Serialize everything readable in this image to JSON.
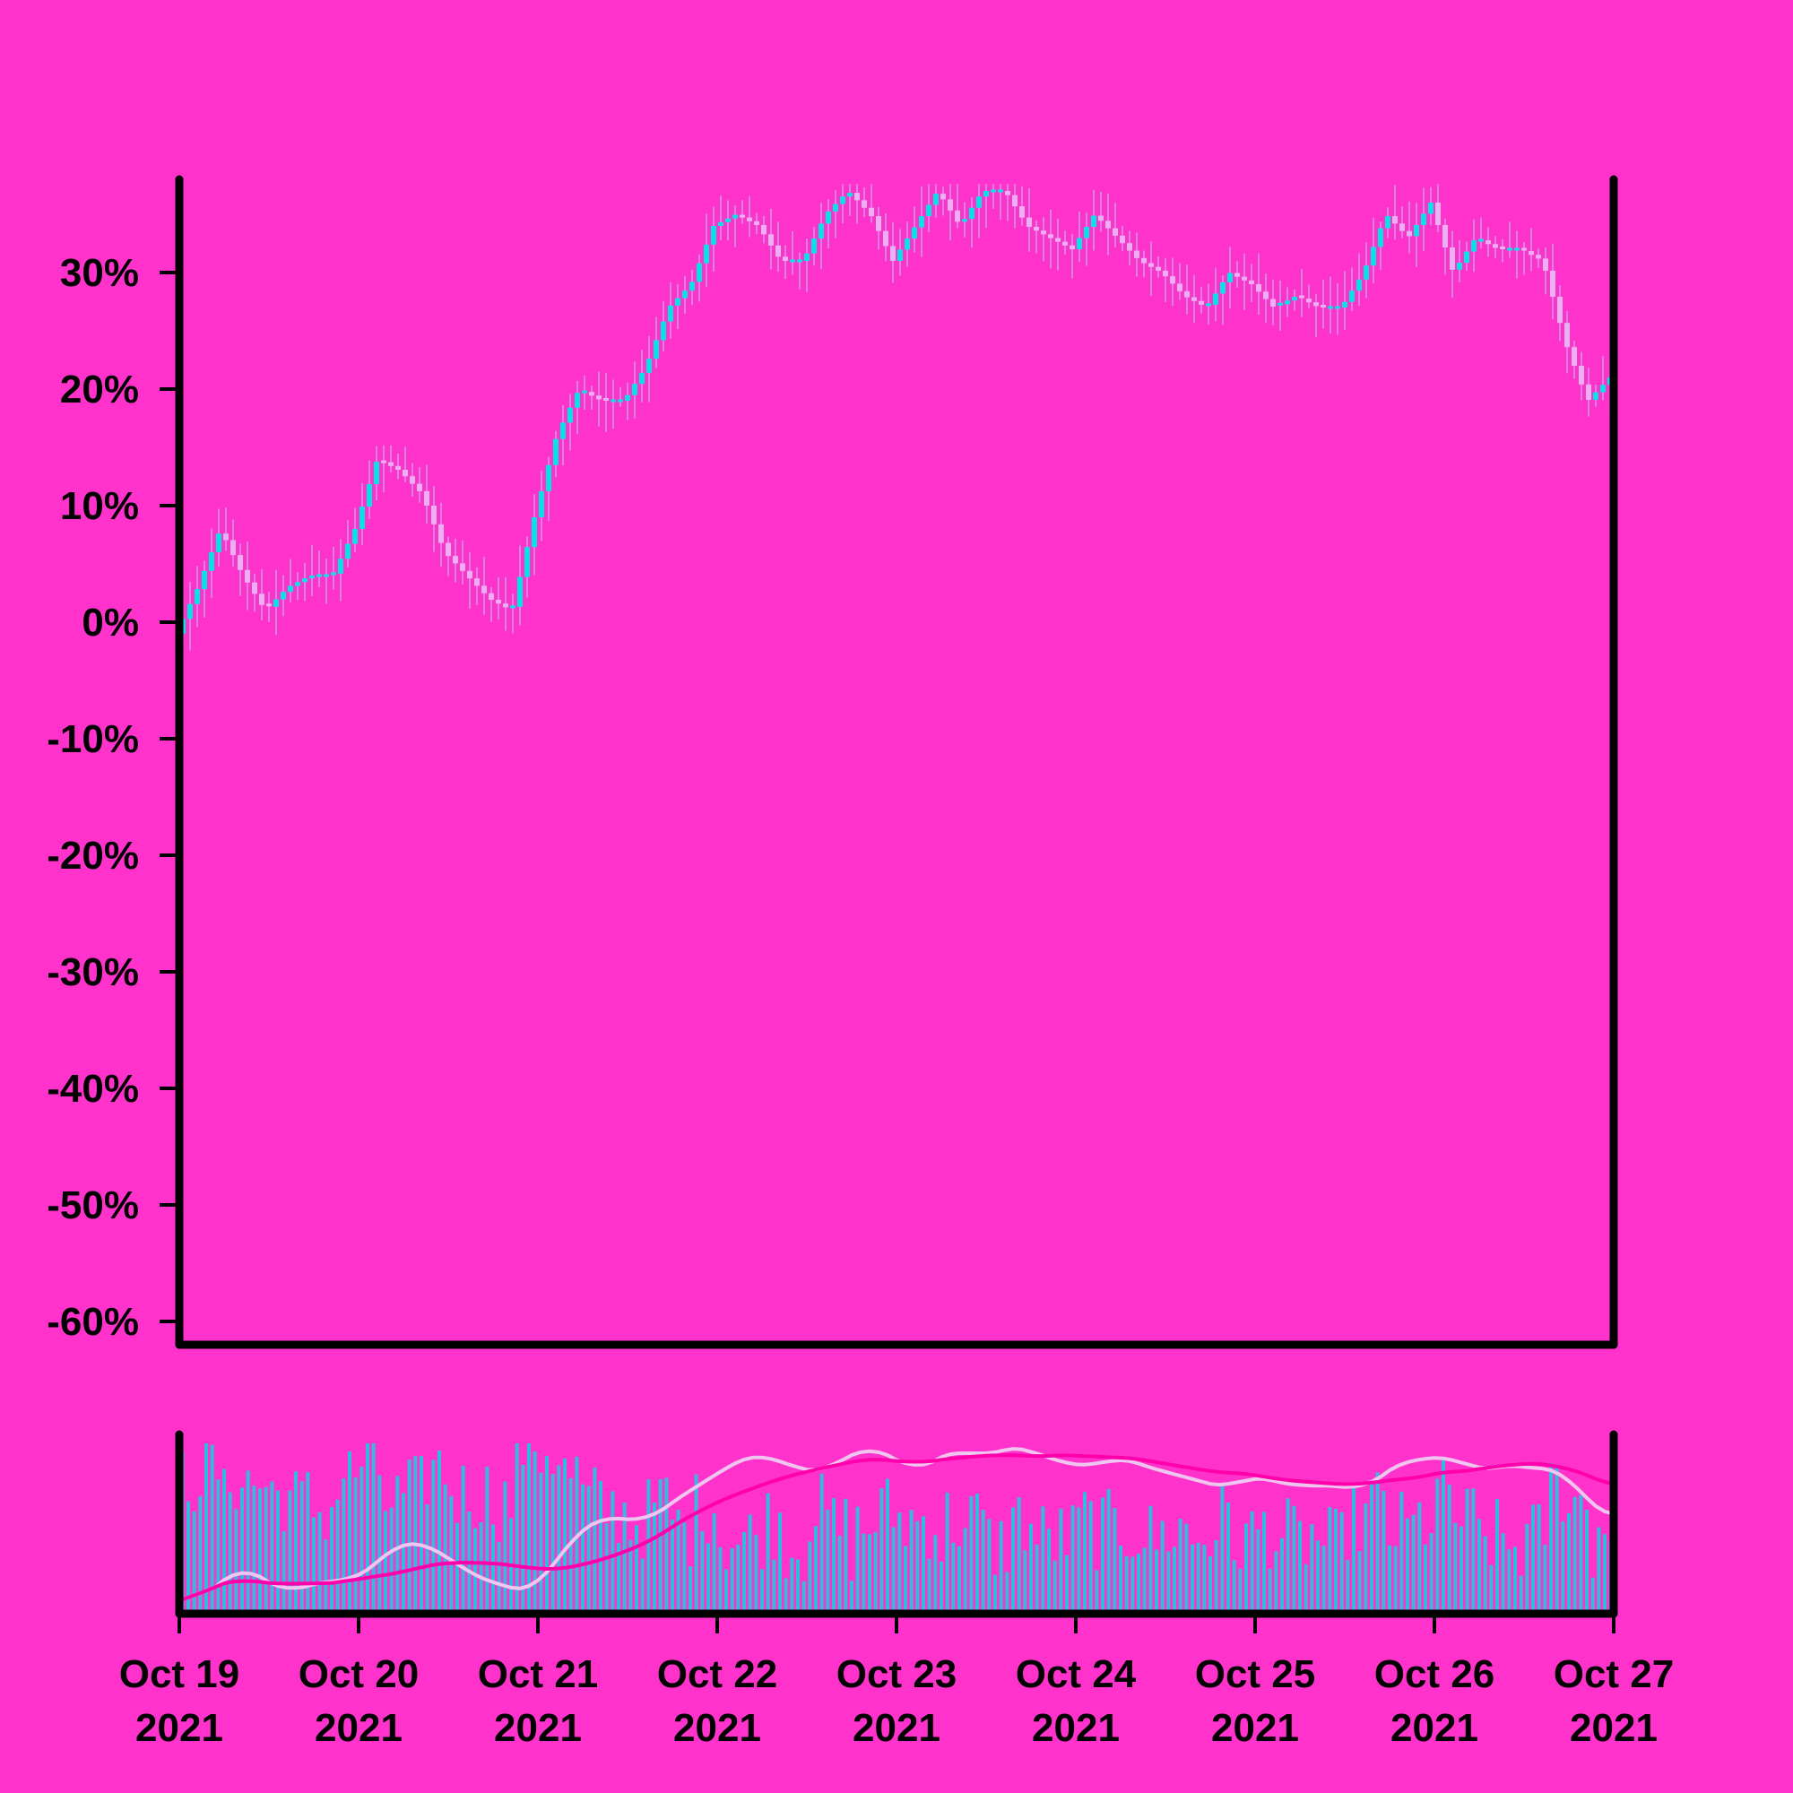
{
  "chart_data": {
    "type": "candlestick",
    "title": "",
    "xlabel": "",
    "ylabel": "",
    "x_range": [
      "2021-10-19",
      "2021-10-27"
    ],
    "x_ticks": [
      {
        "date": "2021-10-19",
        "label_line1": "Oct 19",
        "label_line2": "2021"
      },
      {
        "date": "2021-10-20",
        "label_line1": "Oct 20",
        "label_line2": "2021"
      },
      {
        "date": "2021-10-21",
        "label_line1": "Oct 21",
        "label_line2": "2021"
      },
      {
        "date": "2021-10-22",
        "label_line1": "Oct 22",
        "label_line2": "2021"
      },
      {
        "date": "2021-10-23",
        "label_line1": "Oct 23",
        "label_line2": "2021"
      },
      {
        "date": "2021-10-24",
        "label_line1": "Oct 24",
        "label_line2": "2021"
      },
      {
        "date": "2021-10-25",
        "label_line1": "Oct 25",
        "label_line2": "2021"
      },
      {
        "date": "2021-10-26",
        "label_line1": "Oct 26",
        "label_line2": "2021"
      },
      {
        "date": "2021-10-27",
        "label_line1": "Oct 27",
        "label_line2": "2021"
      }
    ],
    "y_range": [
      -62,
      38
    ],
    "y_ticks": [
      {
        "value": 30,
        "label": "30%"
      },
      {
        "value": 20,
        "label": "20%"
      },
      {
        "value": 10,
        "label": "10%"
      },
      {
        "value": 0,
        "label": "0%"
      },
      {
        "value": -10,
        "label": "-10%"
      },
      {
        "value": -20,
        "label": "-20%"
      },
      {
        "value": -30,
        "label": "-30%"
      },
      {
        "value": -40,
        "label": "-40%"
      },
      {
        "value": -50,
        "label": "-50%"
      },
      {
        "value": -60,
        "label": "-60%"
      }
    ],
    "grid": false,
    "legend": "none",
    "series": [
      {
        "kind": "candlestick-close-percent",
        "path": [
          [
            "2021-10-19T00:00",
            -1
          ],
          [
            "2021-10-19T03:00",
            3
          ],
          [
            "2021-10-19T06:00",
            8
          ],
          [
            "2021-10-19T09:00",
            4
          ],
          [
            "2021-10-19T12:00",
            1
          ],
          [
            "2021-10-19T15:00",
            3
          ],
          [
            "2021-10-19T18:00",
            4
          ],
          [
            "2021-10-19T21:00",
            4
          ],
          [
            "2021-10-20T00:00",
            8
          ],
          [
            "2021-10-20T03:00",
            14
          ],
          [
            "2021-10-20T06:00",
            13
          ],
          [
            "2021-10-20T09:00",
            11
          ],
          [
            "2021-10-20T12:00",
            6
          ],
          [
            "2021-10-20T15:00",
            4
          ],
          [
            "2021-10-20T18:00",
            2
          ],
          [
            "2021-10-20T21:00",
            1
          ],
          [
            "2021-10-21T00:00",
            9
          ],
          [
            "2021-10-21T03:00",
            16
          ],
          [
            "2021-10-21T06:00",
            20
          ],
          [
            "2021-10-21T09:00",
            19
          ],
          [
            "2021-10-21T12:00",
            19
          ],
          [
            "2021-10-21T15:00",
            22
          ],
          [
            "2021-10-21T18:00",
            27
          ],
          [
            "2021-10-21T21:00",
            29
          ],
          [
            "2021-10-22T00:00",
            34
          ],
          [
            "2021-10-22T03:00",
            35
          ],
          [
            "2021-10-22T06:00",
            34
          ],
          [
            "2021-10-22T09:00",
            31
          ],
          [
            "2021-10-22T12:00",
            31
          ],
          [
            "2021-10-22T15:00",
            35
          ],
          [
            "2021-10-22T18:00",
            37
          ],
          [
            "2021-10-22T21:00",
            35
          ],
          [
            "2021-10-23T00:00",
            31
          ],
          [
            "2021-10-23T03:00",
            34
          ],
          [
            "2021-10-23T06:00",
            37
          ],
          [
            "2021-10-23T09:00",
            34
          ],
          [
            "2021-10-23T12:00",
            37
          ],
          [
            "2021-10-23T15:00",
            37
          ],
          [
            "2021-10-23T18:00",
            34
          ],
          [
            "2021-10-23T21:00",
            33
          ],
          [
            "2021-10-24T00:00",
            32
          ],
          [
            "2021-10-24T03:00",
            35
          ],
          [
            "2021-10-24T06:00",
            33
          ],
          [
            "2021-10-24T09:00",
            31
          ],
          [
            "2021-10-24T12:00",
            30
          ],
          [
            "2021-10-24T15:00",
            28
          ],
          [
            "2021-10-24T18:00",
            27
          ],
          [
            "2021-10-24T21:00",
            30
          ],
          [
            "2021-10-25T00:00",
            29
          ],
          [
            "2021-10-25T03:00",
            27
          ],
          [
            "2021-10-25T06:00",
            28
          ],
          [
            "2021-10-25T09:00",
            27
          ],
          [
            "2021-10-25T12:00",
            27
          ],
          [
            "2021-10-25T15:00",
            30
          ],
          [
            "2021-10-25T18:00",
            35
          ],
          [
            "2021-10-25T21:00",
            33
          ],
          [
            "2021-10-26T00:00",
            36
          ],
          [
            "2021-10-26T03:00",
            30
          ],
          [
            "2021-10-26T06:00",
            33
          ],
          [
            "2021-10-26T09:00",
            32
          ],
          [
            "2021-10-26T12:00",
            32
          ],
          [
            "2021-10-26T15:00",
            31
          ],
          [
            "2021-10-26T18:00",
            24
          ],
          [
            "2021-10-26T21:00",
            19
          ],
          [
            "2021-10-27T00:00",
            21
          ]
        ]
      }
    ],
    "volume_panel": {
      "type": "bar",
      "has_y_axis_labels": false,
      "moving_averages": [
        "short",
        "long"
      ]
    },
    "colors": {
      "background": "#ff33cc",
      "axis": "#000000",
      "candle_up": "#00e5e5",
      "candle_down": "#e6b3f0",
      "wick": "#c9a0e6",
      "volume_bar": "#33bbdd",
      "ma_short": "#f0c6f0",
      "ma_long": "#ff00aa"
    }
  }
}
